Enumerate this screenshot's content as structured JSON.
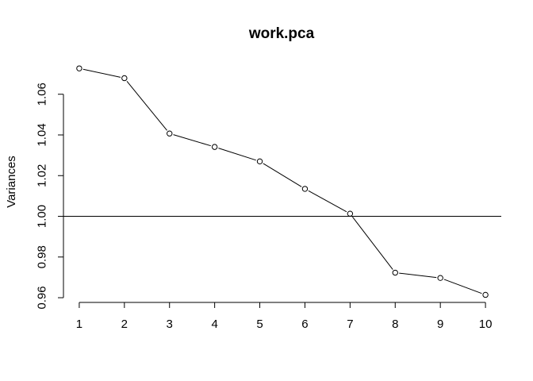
{
  "chart_data": {
    "type": "line",
    "title": "work.pca",
    "xlabel": "",
    "ylabel": "Variances",
    "x": [
      1,
      2,
      3,
      4,
      5,
      6,
      7,
      8,
      9,
      10
    ],
    "x_tick_labels": [
      "1",
      "2",
      "3",
      "4",
      "5",
      "6",
      "7",
      "8",
      "9",
      "10"
    ],
    "y_ticks": [
      0.96,
      0.98,
      1.0,
      1.02,
      1.04,
      1.06
    ],
    "y_tick_labels": [
      "0.96",
      "0.98",
      "1.00",
      "1.02",
      "1.04",
      "1.06"
    ],
    "ylim": [
      0.96,
      1.06
    ],
    "series": [
      {
        "values": [
          1.0727,
          1.0679,
          1.0407,
          1.0341,
          1.027,
          1.0135,
          1.0013,
          0.9723,
          0.9697,
          0.9614
        ],
        "marker": "open-circle",
        "color": "#000000"
      }
    ],
    "reference_lines": [
      {
        "orientation": "horizontal",
        "y": 1.0,
        "color": "#000000"
      }
    ],
    "grid": false,
    "legend": "none"
  }
}
